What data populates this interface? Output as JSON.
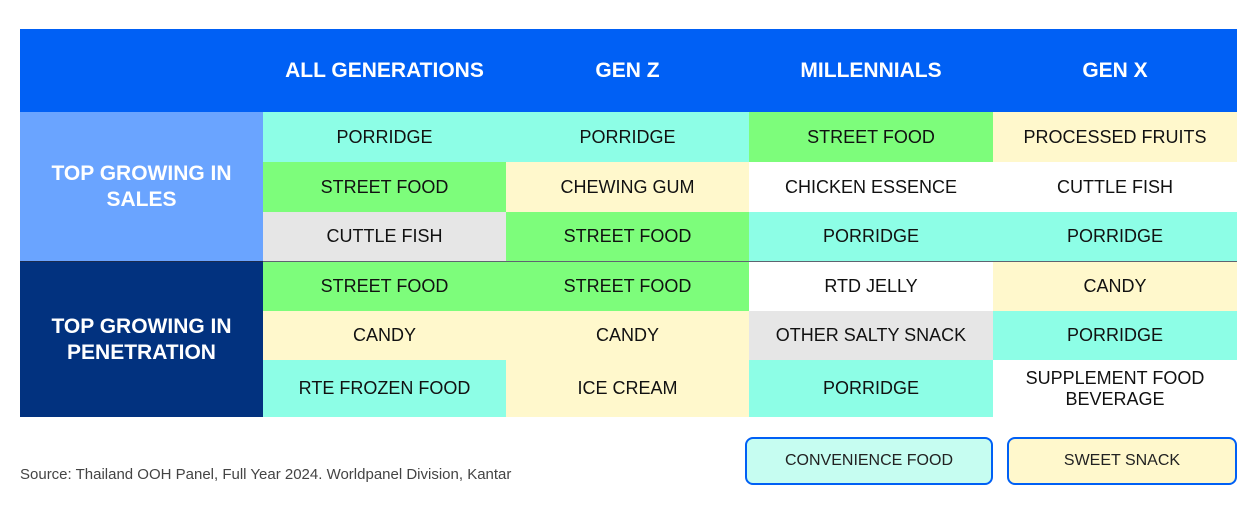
{
  "colors": {
    "header_bg": "#0060f5",
    "sales_label_bg": "#6aa4ff",
    "penetration_label_bg": "#02327f",
    "mint": "#8dfee6",
    "green": "#7dfd7b",
    "cream": "#fff8cc",
    "grey": "#e6e6e6",
    "white": "#ffffff"
  },
  "table": {
    "corner": "",
    "columns": [
      "ALL GENERATIONS",
      "GEN Z",
      "MILLENNIALS",
      "GEN X"
    ],
    "groups": [
      {
        "label": "TOP GROWING IN SALES",
        "rows": [
          [
            {
              "text": "PORRIDGE",
              "color": "mint"
            },
            {
              "text": "PORRIDGE",
              "color": "mint"
            },
            {
              "text": "STREET FOOD",
              "color": "green"
            },
            {
              "text": "PROCESSED FRUITS",
              "color": "cream"
            }
          ],
          [
            {
              "text": "STREET FOOD",
              "color": "green"
            },
            {
              "text": "CHEWING GUM",
              "color": "cream"
            },
            {
              "text": "CHICKEN ESSENCE",
              "color": "white"
            },
            {
              "text": "CUTTLE FISH",
              "color": "white"
            }
          ],
          [
            {
              "text": "CUTTLE FISH",
              "color": "grey"
            },
            {
              "text": "STREET FOOD",
              "color": "green"
            },
            {
              "text": "PORRIDGE",
              "color": "mint"
            },
            {
              "text": "PORRIDGE",
              "color": "mint"
            }
          ]
        ]
      },
      {
        "label": "TOP GROWING IN PENETRATION",
        "rows": [
          [
            {
              "text": "STREET FOOD",
              "color": "green"
            },
            {
              "text": "STREET FOOD",
              "color": "green"
            },
            {
              "text": "RTD JELLY",
              "color": "white"
            },
            {
              "text": "CANDY",
              "color": "cream"
            }
          ],
          [
            {
              "text": "CANDY",
              "color": "cream"
            },
            {
              "text": "CANDY",
              "color": "cream"
            },
            {
              "text": "OTHER SALTY SNACK",
              "color": "grey"
            },
            {
              "text": "PORRIDGE",
              "color": "mint"
            }
          ],
          [
            {
              "text": "RTE FROZEN FOOD",
              "color": "mint"
            },
            {
              "text": "ICE CREAM",
              "color": "cream"
            },
            {
              "text": "PORRIDGE",
              "color": "mint"
            },
            {
              "text": "SUPPLEMENT FOOD BEVERAGE",
              "color": "white"
            }
          ]
        ]
      }
    ]
  },
  "legend": {
    "convenience": "CONVENIENCE FOOD",
    "sweet": "SWEET SNACK"
  },
  "source": "Source: Thailand OOH Panel, Full Year 2024. Worldpanel Division, Kantar"
}
